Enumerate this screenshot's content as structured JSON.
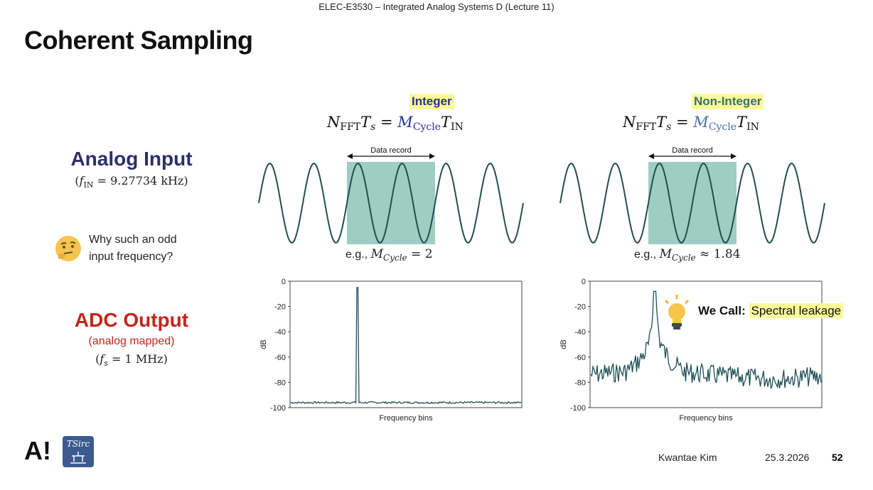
{
  "header": "ELEC-E3530 – Integrated Analog Systems D (Lecture 11)",
  "title": "Coherent Sampling",
  "left_labels": {
    "analog_input": "Analog Input",
    "analog_freq_var": "f",
    "analog_freq_sub": "IN",
    "analog_freq_value": "= 9.27734 kHz",
    "question_line1": "Why such an odd",
    "question_line2": "input frequency?",
    "adc_output": "ADC Output",
    "adc_mapped": "(analog mapped)",
    "adc_freq_var": "f",
    "adc_freq_sub": "s",
    "adc_freq_value": "= 1 MHz"
  },
  "columns": [
    {
      "label": "Integer",
      "formula": {
        "n": "N",
        "n_sub": "FFT",
        "t": "T",
        "t_sub": "s",
        "eq": " = ",
        "m": "M",
        "m_sub": "Cycle",
        "tin": "T",
        "tin_sub": "IN"
      },
      "data_record": "Data record",
      "example_prefix": "e.g.,",
      "example_var": "M",
      "example_sub": "Cycle",
      "example_rel": " = 2"
    },
    {
      "label": "Non-Integer",
      "formula": {
        "n": "N",
        "n_sub": "FFT",
        "t": "T",
        "t_sub": "s",
        "eq": " = ",
        "m": "M",
        "m_sub": "Cycle",
        "tin": "T",
        "tin_sub": "IN"
      },
      "data_record": "Data record",
      "example_prefix": "e.g.,",
      "example_var": "M",
      "example_sub": "Cycle",
      "example_rel": " ≈ 1.84"
    }
  ],
  "callout": {
    "prefix": "We Call:",
    "term": "Spectral leakage"
  },
  "chart_data": [
    {
      "type": "line",
      "xlabel": "Frequency bins",
      "ylabel": "dB",
      "yticks": [
        "0",
        "-20",
        "-40",
        "-60",
        "-80",
        "-100"
      ],
      "ylim": [
        -100,
        0
      ],
      "noise_floor_db": -96,
      "peak_db": -5,
      "peak_position_fraction": 0.29,
      "leakage": false
    },
    {
      "type": "line",
      "xlabel": "Frequency bins",
      "ylabel": "dB",
      "yticks": [
        "0",
        "-20",
        "-40",
        "-60",
        "-80",
        "-100"
      ],
      "ylim": [
        -100,
        0
      ],
      "noise_floor_db": -70,
      "peak_db": -8,
      "peak_position_fraction": 0.28,
      "leakage": true
    }
  ],
  "colors": {
    "trace": "#1e4f57",
    "record_box": "#7dbdae",
    "highlight": "#fafa9a",
    "analog_blue": "#2d2f6b",
    "adc_red": "#c0271d"
  },
  "icons": [
    "thinking-face-icon",
    "lightbulb-icon",
    "aalto-logo",
    "tsirc-logo"
  ],
  "footer": {
    "author": "Kwantae Kim",
    "date": "25.3.2026",
    "page": "52"
  }
}
